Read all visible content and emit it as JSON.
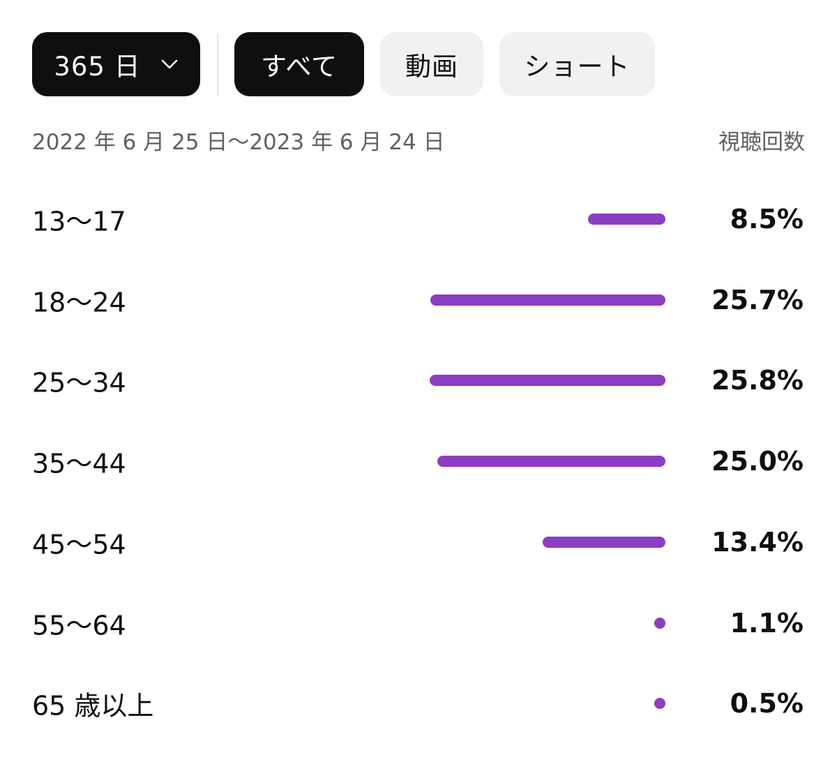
{
  "filters": {
    "period_label": "365 日",
    "tabs": [
      "すべて",
      "動画",
      "ショート"
    ],
    "selected_tab": "すべて"
  },
  "date_range": "2022 年 6 月 25 日～2023 年 6 月 24 日",
  "metric": "視聴回数",
  "bar_color": "#8b3dc4",
  "chart_data": {
    "type": "bar",
    "orientation": "horizontal",
    "categories": [
      "13～17",
      "18～24",
      "25～34",
      "35～44",
      "45～54",
      "55～64",
      "65 歳以上"
    ],
    "values": [
      8.5,
      25.7,
      25.8,
      25.0,
      13.4,
      1.1,
      0.5
    ],
    "value_labels": [
      "8.5%",
      "25.7%",
      "25.8%",
      "25.0%",
      "13.4%",
      "1.1%",
      "0.5%"
    ],
    "unit": "%"
  }
}
